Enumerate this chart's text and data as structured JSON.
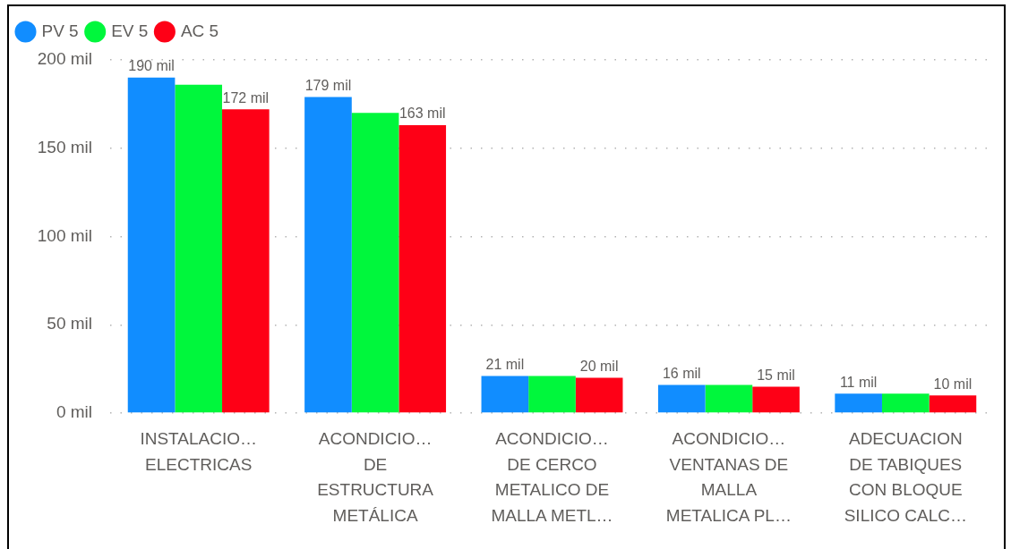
{
  "chart_data": {
    "type": "bar",
    "categories": [
      "INSTALACIO… ELECTRICAS",
      "ACONDICIO… DE ESTRUCTURA METÁLICA",
      "ACONDICIO… DE CERCO METALICO DE MALLA METL…",
      "ACONDICIO… VENTANAS DE MALLA METALICA PL…",
      "ADECUACION DE TABIQUES CON BLOQUE SILICO CALC…"
    ],
    "series": [
      {
        "name": "PV 5",
        "color": "#118dff",
        "values": [
          190,
          179,
          21,
          16,
          11
        ],
        "value_labels": [
          "190 mil",
          "179 mil",
          "21 mil",
          "16 mil",
          "11 mil"
        ]
      },
      {
        "name": "EV 5",
        "color": "#00f73c",
        "values": [
          186,
          170,
          21,
          16,
          11
        ]
      },
      {
        "name": "AC 5",
        "color": "#fe0016",
        "values": [
          172,
          163,
          20,
          15,
          10
        ],
        "value_labels": [
          "172 mil",
          "163 mil",
          "20 mil",
          "15 mil",
          "10 mil"
        ]
      }
    ],
    "ylim": [
      0,
      200
    ],
    "yticks": [
      {
        "value": 0,
        "label": "0 mil"
      },
      {
        "value": 50,
        "label": "50 mil"
      },
      {
        "value": 100,
        "label": "100 mil"
      },
      {
        "value": 150,
        "label": "150 mil"
      },
      {
        "value": 200,
        "label": "200 mil"
      }
    ],
    "grid": "y",
    "legend": "top left"
  }
}
